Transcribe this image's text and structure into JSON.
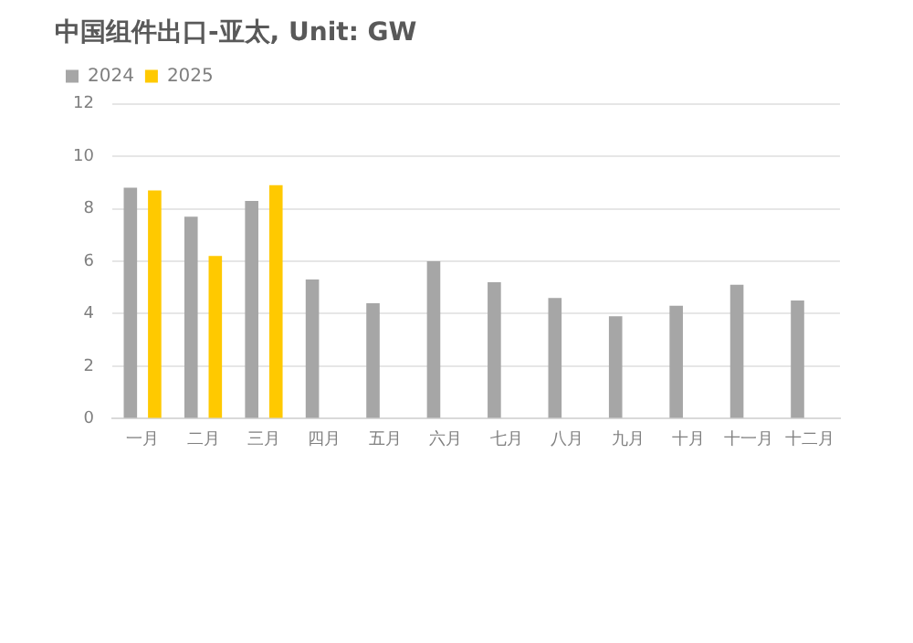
{
  "chart_data": {
    "type": "bar",
    "title": "中国组件出口-亚太, Unit: GW",
    "categories": [
      "一月",
      "二月",
      "三月",
      "四月",
      "五月",
      "六月",
      "七月",
      "八月",
      "九月",
      "十月",
      "十一月",
      "十二月"
    ],
    "series": [
      {
        "name": "2024",
        "color": "#a6a6a6",
        "values": [
          8.8,
          7.7,
          8.3,
          5.3,
          4.4,
          6.0,
          5.2,
          4.6,
          3.9,
          4.3,
          5.1,
          4.5
        ]
      },
      {
        "name": "2025",
        "color": "#ffc900",
        "values": [
          8.7,
          6.2,
          8.9,
          null,
          null,
          null,
          null,
          null,
          null,
          null,
          null,
          null
        ]
      }
    ],
    "ylim": [
      0,
      12
    ],
    "yticks": [
      0,
      2,
      4,
      6,
      8,
      10,
      12
    ],
    "grid": "y",
    "legend": "top left"
  }
}
